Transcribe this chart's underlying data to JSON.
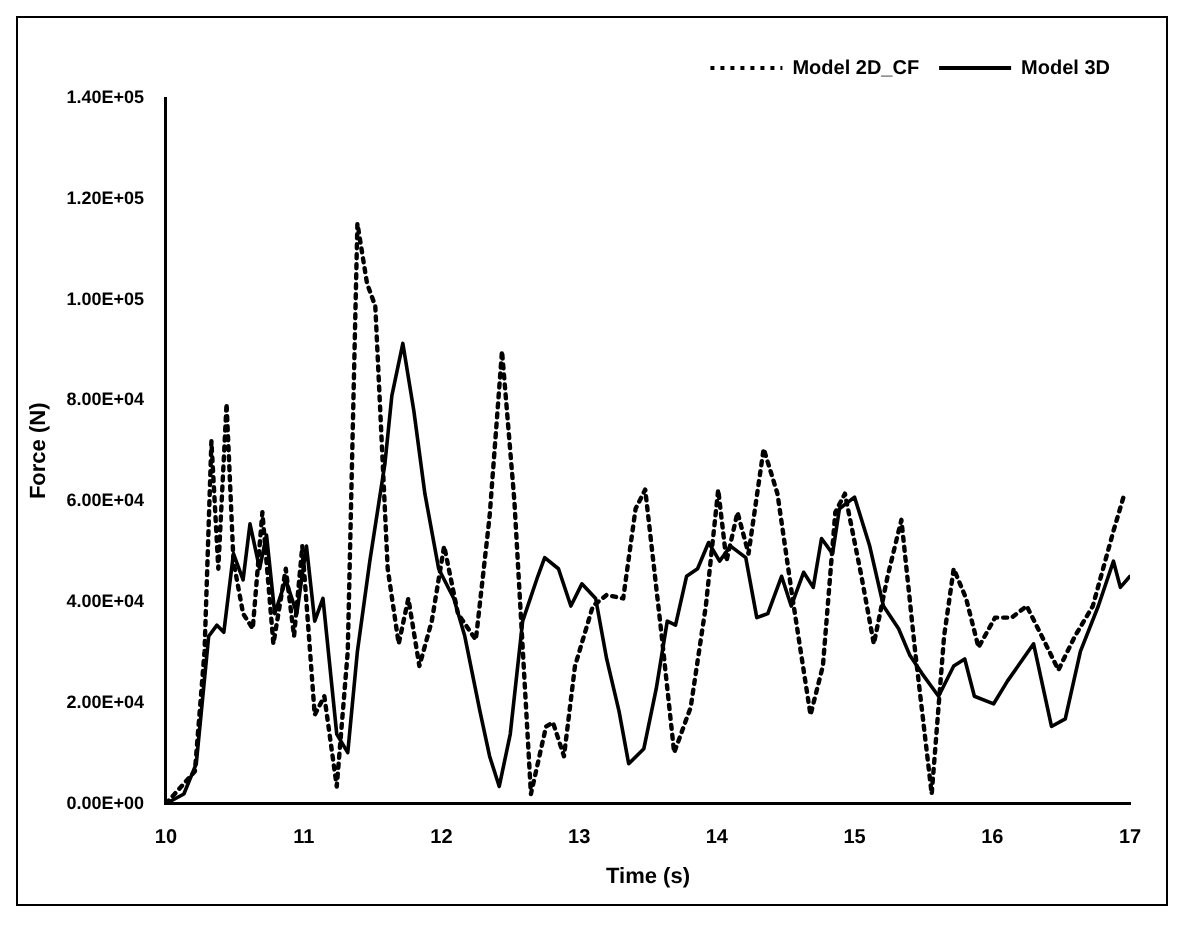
{
  "chart_data": {
    "type": "line",
    "xlabel": "Time (s)",
    "ylabel": "Force (N)",
    "xlim": [
      10,
      17
    ],
    "xticks": [
      10,
      11,
      12,
      13,
      14,
      15,
      16,
      17
    ],
    "ylim": [
      0,
      140000
    ],
    "yticks": [
      {
        "value": 0,
        "label": "0.00E+00"
      },
      {
        "value": 20000,
        "label": "2.00E+04"
      },
      {
        "value": 40000,
        "label": "4.00E+04"
      },
      {
        "value": 60000,
        "label": "6.00E+04"
      },
      {
        "value": 80000,
        "label": "8.00E+04"
      },
      {
        "value": 100000,
        "label": "1.00E+05"
      },
      {
        "value": 120000,
        "label": "1.20E+05"
      },
      {
        "value": 140000,
        "label": "1.40E+05"
      }
    ],
    "grid": false,
    "legend": "top right",
    "marker": "none",
    "series": [
      {
        "name": "Model 2D_CF",
        "color": "#000000",
        "line_style": "dotted",
        "x": [
          10,
          10.21,
          10.28,
          10.33,
          10.38,
          10.44,
          10.49,
          10.56,
          10.63,
          10.7,
          10.78,
          10.87,
          10.93,
          10.99,
          11.08,
          11.15,
          11.24,
          11.32,
          11.39,
          11.46,
          11.52,
          11.61,
          11.69,
          11.76,
          11.84,
          11.93,
          12.02,
          12.12,
          12.25,
          12.35,
          12.44,
          12.53,
          12.65,
          12.76,
          12.81,
          12.89,
          12.97,
          13.1,
          13.2,
          13.32,
          13.41,
          13.48,
          13.6,
          13.69,
          13.81,
          13.92,
          14.01,
          14.07,
          14.15,
          14.23,
          14.34,
          14.44,
          14.55,
          14.68,
          14.77,
          14.86,
          14.93,
          15.05,
          15.14,
          15.24,
          15.34,
          15.44,
          15.56,
          15.65,
          15.72,
          15.81,
          15.9,
          16.02,
          16.14,
          16.25,
          16.36,
          16.48,
          16.6,
          16.73,
          16.88,
          16.96
        ],
        "values": [
          0,
          6400,
          30200,
          71900,
          46600,
          79400,
          48100,
          37700,
          34700,
          57800,
          31700,
          46600,
          33200,
          51100,
          17600,
          21300,
          3400,
          30200,
          115100,
          103200,
          98700,
          46600,
          31700,
          40700,
          27300,
          36200,
          51100,
          37700,
          32500,
          57000,
          89800,
          60000,
          1900,
          15300,
          16100,
          9400,
          27300,
          39200,
          41400,
          40700,
          58500,
          62300,
          33200,
          10100,
          19100,
          39200,
          62300,
          48100,
          57800,
          49600,
          70400,
          61500,
          40700,
          17600,
          27300,
          57800,
          61500,
          45100,
          31700,
          45100,
          56300,
          30200,
          1900,
          33200,
          46600,
          40700,
          31000,
          36900,
          36900,
          39200,
          33200,
          26500,
          33200,
          39200,
          54100,
          61500
        ]
      },
      {
        "name": "Model 3D",
        "color": "#000000",
        "line_style": "solid",
        "x": [
          10,
          10.13,
          10.22,
          10.31,
          10.37,
          10.42,
          10.49,
          10.56,
          10.61,
          10.68,
          10.73,
          10.79,
          10.87,
          10.95,
          11.02,
          11.08,
          11.14,
          11.24,
          11.32,
          11.39,
          11.48,
          11.59,
          11.64,
          11.72,
          11.8,
          11.88,
          11.98,
          12.09,
          12.17,
          12.28,
          12.35,
          12.42,
          12.5,
          12.59,
          12.7,
          12.75,
          12.85,
          12.94,
          13.02,
          13.12,
          13.2,
          13.29,
          13.36,
          13.47,
          13.56,
          13.64,
          13.7,
          13.78,
          13.86,
          13.94,
          14.02,
          14.1,
          14.21,
          14.29,
          14.37,
          14.47,
          14.54,
          14.63,
          14.7,
          14.76,
          14.84,
          14.89,
          15,
          15.11,
          15.21,
          15.32,
          15.4,
          15.49,
          15.61,
          15.72,
          15.8,
          15.87,
          16.01,
          16.11,
          16.3,
          16.43,
          16.53,
          16.64,
          16.77,
          16.88,
          16.93,
          17
        ],
        "values": [
          0,
          1900,
          7900,
          33200,
          35400,
          34000,
          49600,
          44400,
          55500,
          46600,
          53300,
          37700,
          44400,
          37700,
          51100,
          36200,
          40700,
          13800,
          10100,
          30200,
          48100,
          67500,
          80900,
          91300,
          77900,
          61500,
          46600,
          40700,
          33200,
          18300,
          9400,
          3400,
          13800,
          36200,
          45100,
          48800,
          46600,
          39200,
          43600,
          40700,
          28700,
          18300,
          7900,
          10900,
          22800,
          36200,
          35400,
          45100,
          46600,
          51800,
          48100,
          51100,
          48800,
          36900,
          37700,
          45100,
          39200,
          45900,
          42900,
          52600,
          49600,
          58500,
          60800,
          51100,
          39200,
          34700,
          29500,
          25800,
          21300,
          27300,
          28700,
          21300,
          19800,
          24300,
          31700,
          15300,
          16800,
          30200,
          39200,
          48100,
          42900,
          45100
        ]
      }
    ]
  }
}
